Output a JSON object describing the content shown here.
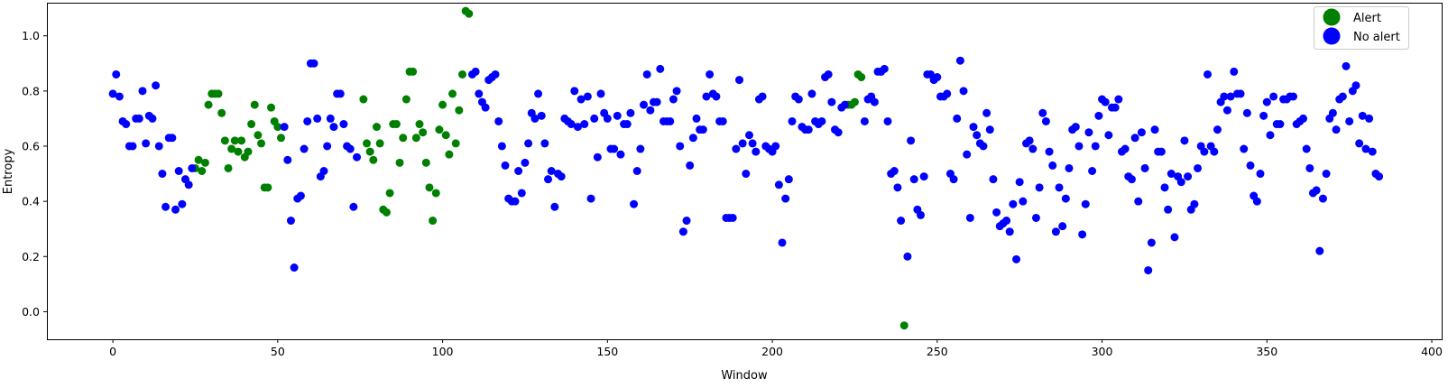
{
  "chart_data": {
    "type": "scatter",
    "title": "",
    "xlabel": "Window",
    "ylabel": "Entropy",
    "xlim": [
      -20,
      403
    ],
    "ylim": [
      -0.1,
      1.12
    ],
    "xticks": [
      0,
      50,
      100,
      150,
      200,
      250,
      300,
      350,
      400
    ],
    "yticks": [
      0.0,
      0.2,
      0.4,
      0.6,
      0.8,
      1.0
    ],
    "xtick_labels": [
      "0",
      "50",
      "100",
      "150",
      "200",
      "250",
      "300",
      "350",
      "400"
    ],
    "ytick_labels": [
      "0.0",
      "0.2",
      "0.4",
      "0.6",
      "0.8",
      "1.0"
    ],
    "grid": false,
    "legend_position": "top-right",
    "series": [
      {
        "name": "Alert",
        "color": "#008000",
        "x": [
          25,
          26,
          27,
          28,
          29,
          30,
          31,
          32,
          33,
          34,
          35,
          36,
          37,
          38,
          39,
          40,
          41,
          42,
          43,
          44,
          45,
          46,
          47,
          48,
          49,
          50,
          51,
          76,
          77,
          78,
          79,
          80,
          81,
          82,
          83,
          84,
          85,
          86,
          87,
          88,
          89,
          90,
          91,
          92,
          93,
          94,
          95,
          96,
          97,
          98,
          99,
          100,
          101,
          102,
          103,
          104,
          105,
          106,
          107,
          108,
          223,
          224,
          225,
          226,
          227,
          240
        ],
        "y": [
          0.52,
          0.55,
          0.51,
          0.54,
          0.75,
          0.79,
          0.79,
          0.79,
          0.72,
          0.62,
          0.52,
          0.59,
          0.62,
          0.58,
          0.62,
          0.56,
          0.58,
          0.68,
          0.75,
          0.64,
          0.61,
          0.45,
          0.45,
          0.74,
          0.69,
          0.67,
          0.63,
          0.77,
          0.61,
          0.58,
          0.55,
          0.67,
          0.61,
          0.37,
          0.36,
          0.43,
          0.68,
          0.68,
          0.54,
          0.63,
          0.77,
          0.87,
          0.87,
          0.63,
          0.68,
          0.65,
          0.54,
          0.45,
          0.33,
          0.43,
          0.66,
          0.75,
          0.64,
          0.57,
          0.79,
          0.61,
          0.73,
          0.86,
          1.09,
          1.08,
          0.75,
          0.75,
          0.76,
          0.86,
          0.85,
          -0.05
        ]
      },
      {
        "name": "No alert",
        "color": "#0000ff",
        "x": [
          0,
          1,
          2,
          3,
          4,
          5,
          6,
          7,
          8,
          9,
          10,
          11,
          12,
          13,
          14,
          15,
          16,
          17,
          18,
          19,
          20,
          21,
          22,
          23,
          24,
          52,
          53,
          54,
          55,
          56,
          57,
          58,
          59,
          60,
          61,
          62,
          63,
          64,
          65,
          66,
          67,
          68,
          69,
          70,
          71,
          72,
          73,
          74,
          109,
          110,
          111,
          112,
          113,
          114,
          115,
          116,
          117,
          118,
          119,
          120,
          121,
          122,
          123,
          124,
          125,
          126,
          127,
          128,
          129,
          130,
          131,
          132,
          133,
          134,
          135,
          136,
          137,
          138,
          139,
          140,
          141,
          142,
          143,
          144,
          145,
          146,
          147,
          148,
          149,
          150,
          151,
          152,
          153,
          154,
          155,
          156,
          157,
          158,
          159,
          160,
          161,
          162,
          163,
          164,
          165,
          166,
          167,
          168,
          169,
          170,
          171,
          172,
          173,
          174,
          175,
          176,
          177,
          178,
          179,
          180,
          181,
          182,
          183,
          184,
          185,
          186,
          187,
          188,
          189,
          190,
          191,
          192,
          193,
          194,
          195,
          196,
          197,
          198,
          199,
          200,
          201,
          202,
          203,
          204,
          205,
          206,
          207,
          208,
          209,
          210,
          211,
          212,
          213,
          214,
          215,
          216,
          217,
          218,
          219,
          220,
          221,
          222,
          228,
          229,
          230,
          231,
          232,
          233,
          234,
          235,
          236,
          237,
          238,
          239,
          241,
          242,
          243,
          244,
          245,
          246,
          247,
          248,
          249,
          250,
          251,
          252,
          253,
          254,
          255,
          256,
          257,
          258,
          259,
          260,
          261,
          262,
          263,
          264,
          265,
          266,
          267,
          268,
          269,
          270,
          271,
          272,
          273,
          274,
          275,
          276,
          277,
          278,
          279,
          280,
          281,
          282,
          283,
          284,
          285,
          286,
          287,
          288,
          289,
          290,
          291,
          292,
          293,
          294,
          295,
          296,
          297,
          298,
          299,
          300,
          301,
          302,
          303,
          304,
          305,
          306,
          307,
          308,
          309,
          310,
          311,
          312,
          313,
          314,
          315,
          316,
          317,
          318,
          319,
          320,
          321,
          322,
          323,
          324,
          325,
          326,
          327,
          328,
          329,
          330,
          331,
          332,
          333,
          334,
          335,
          336,
          337,
          338,
          339,
          340,
          341,
          342,
          343,
          344,
          345,
          346,
          347,
          348,
          349,
          350,
          351,
          352,
          353,
          354,
          355,
          356,
          357,
          358,
          359,
          360,
          361,
          362,
          363,
          364,
          365,
          366,
          367,
          368,
          369,
          370,
          371,
          372,
          373,
          374,
          375,
          376,
          377,
          378,
          379,
          380,
          381,
          382,
          383,
          384
        ],
        "y": [
          0.79,
          0.86,
          0.78,
          0.69,
          0.68,
          0.6,
          0.6,
          0.7,
          0.7,
          0.8,
          0.61,
          0.71,
          0.7,
          0.82,
          0.6,
          0.5,
          0.38,
          0.63,
          0.63,
          0.37,
          0.51,
          0.39,
          0.48,
          0.46,
          0.52,
          0.67,
          0.55,
          0.33,
          0.16,
          0.41,
          0.42,
          0.59,
          0.69,
          0.9,
          0.9,
          0.7,
          0.49,
          0.51,
          0.6,
          0.7,
          0.67,
          0.79,
          0.79,
          0.68,
          0.6,
          0.59,
          0.38,
          0.56,
          0.86,
          0.87,
          0.79,
          0.76,
          0.74,
          0.84,
          0.85,
          0.86,
          0.69,
          0.6,
          0.53,
          0.41,
          0.4,
          0.4,
          0.51,
          0.43,
          0.54,
          0.61,
          0.72,
          0.7,
          0.79,
          0.71,
          0.61,
          0.48,
          0.51,
          0.38,
          0.5,
          0.49,
          0.7,
          0.69,
          0.68,
          0.8,
          0.67,
          0.77,
          0.68,
          0.78,
          0.41,
          0.7,
          0.56,
          0.79,
          0.72,
          0.7,
          0.59,
          0.59,
          0.71,
          0.57,
          0.68,
          0.68,
          0.72,
          0.39,
          0.51,
          0.59,
          0.75,
          0.86,
          0.73,
          0.76,
          0.76,
          0.88,
          0.69,
          0.69,
          0.69,
          0.77,
          0.8,
          0.6,
          0.29,
          0.33,
          0.53,
          0.63,
          0.7,
          0.66,
          0.66,
          0.78,
          0.86,
          0.79,
          0.78,
          0.69,
          0.69,
          0.34,
          0.34,
          0.34,
          0.59,
          0.84,
          0.61,
          0.5,
          0.64,
          0.61,
          0.58,
          0.77,
          0.78,
          0.6,
          0.59,
          0.58,
          0.6,
          0.46,
          0.25,
          0.41,
          0.48,
          0.69,
          0.78,
          0.77,
          0.67,
          0.66,
          0.66,
          0.79,
          0.69,
          0.68,
          0.69,
          0.85,
          0.86,
          0.76,
          0.66,
          0.65,
          0.74,
          0.75,
          0.69,
          0.77,
          0.78,
          0.76,
          0.87,
          0.87,
          0.88,
          0.69,
          0.5,
          0.51,
          0.45,
          0.33,
          0.2,
          0.62,
          0.48,
          0.37,
          0.35,
          0.49,
          0.86,
          0.86,
          0.84,
          0.85,
          0.78,
          0.78,
          0.79,
          0.5,
          0.48,
          0.7,
          0.91,
          0.8,
          0.57,
          0.34,
          0.67,
          0.64,
          0.61,
          0.6,
          0.72,
          0.66,
          0.48,
          0.36,
          0.31,
          0.32,
          0.33,
          0.29,
          0.39,
          0.19,
          0.47,
          0.4,
          0.61,
          0.62,
          0.59,
          0.34,
          0.45,
          0.72,
          0.69,
          0.58,
          0.53,
          0.29,
          0.45,
          0.31,
          0.41,
          0.52,
          0.66,
          0.67,
          0.6,
          0.28,
          0.39,
          0.65,
          0.51,
          0.6,
          0.71,
          0.77,
          0.76,
          0.64,
          0.74,
          0.74,
          0.77,
          0.58,
          0.59,
          0.49,
          0.48,
          0.63,
          0.4,
          0.65,
          0.52,
          0.15,
          0.25,
          0.66,
          0.58,
          0.58,
          0.45,
          0.37,
          0.5,
          0.27,
          0.49,
          0.47,
          0.62,
          0.49,
          0.37,
          0.39,
          0.52,
          0.6,
          0.58,
          0.86,
          0.6,
          0.58,
          0.66,
          0.76,
          0.78,
          0.73,
          0.78,
          0.87,
          0.79,
          0.79,
          0.59,
          0.72,
          0.53,
          0.42,
          0.4,
          0.5,
          0.71,
          0.76,
          0.64,
          0.78,
          0.68,
          0.68,
          0.77,
          0.77,
          0.78,
          0.78,
          0.68,
          0.69,
          0.7,
          0.59,
          0.52,
          0.43,
          0.44,
          0.22,
          0.41,
          0.5,
          0.7,
          0.72,
          0.66,
          0.77,
          0.78,
          0.89,
          0.69,
          0.8,
          0.82,
          0.61,
          0.71,
          0.59,
          0.7,
          0.58,
          0.5,
          0.49
        ]
      }
    ]
  }
}
